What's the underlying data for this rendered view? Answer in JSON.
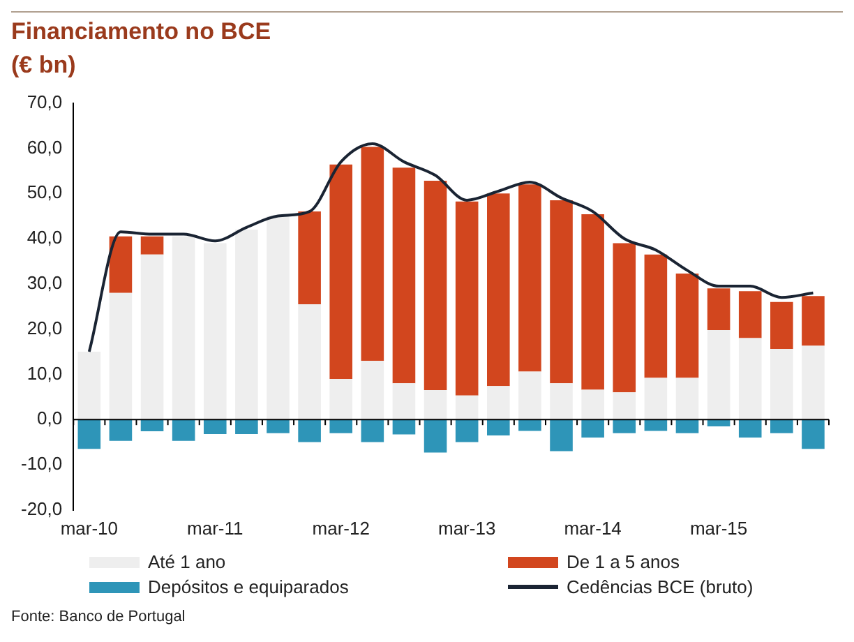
{
  "chart_data": {
    "type": "bar",
    "title": "Financiamento no BCE",
    "subtitle": "(€ bn)",
    "stacked": true,
    "categories": [
      "mar-10",
      null,
      null,
      null,
      "mar-11",
      null,
      null,
      null,
      "mar-12",
      null,
      null,
      null,
      "mar-13",
      null,
      null,
      null,
      "mar-14",
      null,
      null,
      null,
      "mar-15",
      null,
      null,
      null
    ],
    "series": [
      {
        "name": "Até 1 ano",
        "color": "#eeeeee",
        "values": [
          15,
          28,
          36.5,
          40.5,
          39,
          42,
          45,
          25.5,
          9,
          13,
          8,
          6.5,
          5.3,
          7.4,
          10.6,
          8,
          6.6,
          6,
          9.2,
          9.2,
          19.8,
          18,
          15.6,
          16.3
        ]
      },
      {
        "name": "De 1 a 5 anos",
        "color": "#d2461e",
        "values": [
          null,
          12.5,
          4,
          null,
          null,
          null,
          null,
          20.5,
          47.4,
          47.3,
          47.7,
          46.3,
          42.9,
          42.6,
          41.4,
          40.5,
          38.8,
          33,
          27.3,
          23.1,
          9.2,
          10.4,
          10.4,
          11
        ]
      },
      {
        "name": "Depósitos e equiparados",
        "color": "#2e95b8",
        "values": [
          -6.5,
          -4.7,
          -2.6,
          -4.7,
          -3.2,
          -3.2,
          -3,
          -5,
          -3,
          -5,
          -3.3,
          -7.3,
          -5,
          -3.5,
          -2.5,
          -7,
          -4,
          -3,
          -2.5,
          -3,
          -1.5,
          -4,
          -3,
          -6.5
        ]
      },
      {
        "name": "Cedências BCE (bruto)",
        "type": "line",
        "color": "#1a2433",
        "values": [
          15,
          41.5,
          41,
          41,
          39.5,
          42.5,
          45,
          46,
          57,
          61,
          57,
          54,
          48.5,
          50.5,
          52.5,
          49,
          46,
          40,
          37.5,
          33,
          29.5,
          29.5,
          27,
          28
        ]
      }
    ],
    "ylim": [
      -20,
      70
    ],
    "yticks": [
      {
        "value": -20,
        "label": "-20,0"
      },
      {
        "value": -10,
        "label": "-10,0"
      },
      {
        "value": 0,
        "label": "0,0"
      },
      {
        "value": 10,
        "label": "10,0"
      },
      {
        "value": 20,
        "label": "20,0"
      },
      {
        "value": 30,
        "label": "30,0"
      },
      {
        "value": 40,
        "label": "40,0"
      },
      {
        "value": 50,
        "label": "50,0"
      },
      {
        "value": 60,
        "label": "60,0"
      },
      {
        "value": 70,
        "label": "70,0"
      }
    ],
    "ref_lines": [
      {
        "axis": "y",
        "value": 0,
        "color": "#000000"
      }
    ],
    "grid": false,
    "legend": "bottom",
    "marker": "none",
    "line_style": "solid",
    "annotations": [
      "Fonte: Banco de Portugal"
    ]
  }
}
